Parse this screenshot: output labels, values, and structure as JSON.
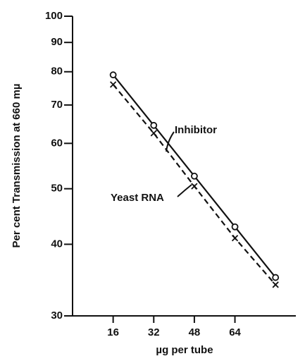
{
  "chart_data": {
    "type": "line",
    "xlabel": "µg per tube",
    "ylabel": "Per cent Transmission at 660 mµ",
    "x": [
      16,
      32,
      48,
      64,
      80
    ],
    "series": [
      {
        "name": "Inhibitor",
        "color": "#111111",
        "marker": "circle",
        "dashed": false,
        "values": [
          79,
          64.5,
          52.6,
          42.9,
          35
        ]
      },
      {
        "name": "Yeast RNA",
        "color": "#111111",
        "marker": "x",
        "dashed": true,
        "values": [
          76,
          62.5,
          50.5,
          41,
          34
        ]
      }
    ],
    "xlim": [
      0,
      88
    ],
    "xticks": [
      16,
      32,
      48,
      64
    ],
    "ylim": [
      30,
      100
    ],
    "yticks": [
      30,
      40,
      50,
      60,
      70,
      80,
      90,
      100
    ],
    "ylog": true
  }
}
